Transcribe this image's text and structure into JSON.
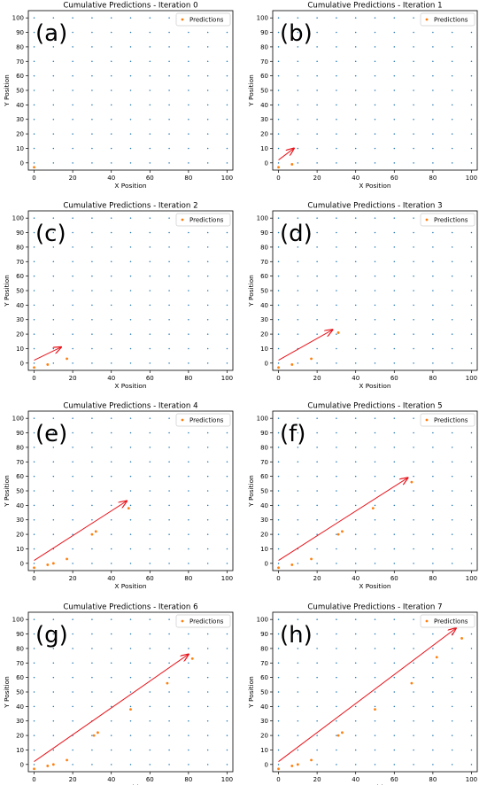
{
  "chart_data": [
    {
      "type": "scatter",
      "panel_label": "(a)",
      "title": "Cumulative Predictions - Iteration 0",
      "xlabel": "X Position",
      "ylabel": "Y Position",
      "xlim": [
        -3,
        103
      ],
      "ylim": [
        -5,
        105
      ],
      "xticks": [
        0,
        20,
        40,
        60,
        80,
        100
      ],
      "yticks": [
        0,
        10,
        20,
        30,
        40,
        50,
        60,
        70,
        80,
        90,
        100
      ],
      "grid": false,
      "legend": {
        "location": "top-right",
        "entries": [
          "Predictions"
        ]
      },
      "series": [
        {
          "name": "",
          "role": "grid points",
          "color": "#1f77b4",
          "x_values": [
            0,
            10,
            20,
            30,
            40,
            50,
            60,
            70,
            80,
            90,
            100
          ],
          "y_values": [
            0,
            10,
            20,
            30,
            40,
            50,
            60,
            70,
            80,
            90,
            100
          ]
        },
        {
          "name": "Predictions",
          "color": "#ff7f0e",
          "points": [
            [
              0,
              -3
            ]
          ]
        }
      ],
      "arrow": null
    },
    {
      "type": "scatter",
      "panel_label": "(b)",
      "title": "Cumulative Predictions - Iteration 1",
      "xlabel": "X Position",
      "ylabel": "Y Position",
      "xlim": [
        -3,
        103
      ],
      "ylim": [
        -5,
        105
      ],
      "xticks": [
        0,
        20,
        40,
        60,
        80,
        100
      ],
      "yticks": [
        0,
        10,
        20,
        30,
        40,
        50,
        60,
        70,
        80,
        90,
        100
      ],
      "grid": false,
      "legend": {
        "location": "top-right",
        "entries": [
          "Predictions"
        ]
      },
      "series": [
        {
          "name": "",
          "role": "grid points",
          "color": "#1f77b4",
          "x_values": [
            0,
            10,
            20,
            30,
            40,
            50,
            60,
            70,
            80,
            90,
            100
          ],
          "y_values": [
            0,
            10,
            20,
            30,
            40,
            50,
            60,
            70,
            80,
            90,
            100
          ]
        },
        {
          "name": "Predictions",
          "color": "#ff7f0e",
          "points": [
            [
              0,
              -3
            ],
            [
              7,
              -1
            ]
          ]
        }
      ],
      "arrow": {
        "color": "#e8141b",
        "from": [
          0,
          2
        ],
        "to": [
          8,
          10
        ]
      }
    },
    {
      "type": "scatter",
      "panel_label": "(c)",
      "title": "Cumulative Predictions - Iteration 2",
      "xlabel": "X Position",
      "ylabel": "Y Position",
      "xlim": [
        -3,
        103
      ],
      "ylim": [
        -5,
        105
      ],
      "xticks": [
        0,
        20,
        40,
        60,
        80,
        100
      ],
      "yticks": [
        0,
        10,
        20,
        30,
        40,
        50,
        60,
        70,
        80,
        90,
        100
      ],
      "grid": false,
      "legend": {
        "location": "top-right",
        "entries": [
          "Predictions"
        ]
      },
      "series": [
        {
          "name": "",
          "role": "grid points",
          "color": "#1f77b4",
          "x_values": [
            0,
            10,
            20,
            30,
            40,
            50,
            60,
            70,
            80,
            90,
            100
          ],
          "y_values": [
            0,
            10,
            20,
            30,
            40,
            50,
            60,
            70,
            80,
            90,
            100
          ]
        },
        {
          "name": "Predictions",
          "color": "#ff7f0e",
          "points": [
            [
              0,
              -3
            ],
            [
              7,
              -1
            ],
            [
              17,
              3
            ]
          ]
        }
      ],
      "arrow": {
        "color": "#e8141b",
        "from": [
          0,
          2
        ],
        "to": [
          14,
          11
        ]
      }
    },
    {
      "type": "scatter",
      "panel_label": "(d)",
      "title": "Cumulative Predictions - Iteration 3",
      "xlabel": "X Position",
      "ylabel": "Y Position",
      "xlim": [
        -3,
        103
      ],
      "ylim": [
        -5,
        105
      ],
      "xticks": [
        0,
        20,
        40,
        60,
        80,
        100
      ],
      "yticks": [
        0,
        10,
        20,
        30,
        40,
        50,
        60,
        70,
        80,
        90,
        100
      ],
      "grid": false,
      "legend": {
        "location": "top-right",
        "entries": [
          "Predictions"
        ]
      },
      "series": [
        {
          "name": "",
          "role": "grid points",
          "color": "#1f77b4",
          "x_values": [
            0,
            10,
            20,
            30,
            40,
            50,
            60,
            70,
            80,
            90,
            100
          ],
          "y_values": [
            0,
            10,
            20,
            30,
            40,
            50,
            60,
            70,
            80,
            90,
            100
          ]
        },
        {
          "name": "Predictions",
          "color": "#ff7f0e",
          "points": [
            [
              0,
              -3
            ],
            [
              7,
              -1
            ],
            [
              17,
              3
            ],
            [
              31,
              21
            ]
          ]
        }
      ],
      "arrow": {
        "color": "#e8141b",
        "from": [
          0,
          2
        ],
        "to": [
          28,
          23
        ]
      }
    },
    {
      "type": "scatter",
      "panel_label": "(e)",
      "title": "Cumulative Predictions - Iteration 4",
      "xlabel": "X Position",
      "ylabel": "Y Position",
      "xlim": [
        -3,
        103
      ],
      "ylim": [
        -5,
        105
      ],
      "xticks": [
        0,
        20,
        40,
        60,
        80,
        100
      ],
      "yticks": [
        0,
        10,
        20,
        30,
        40,
        50,
        60,
        70,
        80,
        90,
        100
      ],
      "grid": false,
      "legend": {
        "location": "top-right",
        "entries": [
          "Predictions"
        ]
      },
      "series": [
        {
          "name": "",
          "role": "grid points",
          "color": "#1f77b4",
          "x_values": [
            0,
            10,
            20,
            30,
            40,
            50,
            60,
            70,
            80,
            90,
            100
          ],
          "y_values": [
            0,
            10,
            20,
            30,
            40,
            50,
            60,
            70,
            80,
            90,
            100
          ]
        },
        {
          "name": "Predictions",
          "color": "#ff7f0e",
          "points": [
            [
              0,
              -3
            ],
            [
              7,
              -1
            ],
            [
              10,
              0
            ],
            [
              17,
              3
            ],
            [
              30,
              20
            ],
            [
              32,
              22
            ],
            [
              49,
              38
            ]
          ]
        }
      ],
      "arrow": {
        "color": "#e8141b",
        "from": [
          0,
          2
        ],
        "to": [
          48,
          43
        ]
      }
    },
    {
      "type": "scatter",
      "panel_label": "(f)",
      "title": "Cumulative Predictions - Iteration 5",
      "xlabel": "X Position",
      "ylabel": "Y Position",
      "xlim": [
        -3,
        103
      ],
      "ylim": [
        -5,
        105
      ],
      "xticks": [
        0,
        20,
        40,
        60,
        80,
        100
      ],
      "yticks": [
        0,
        10,
        20,
        30,
        40,
        50,
        60,
        70,
        80,
        90,
        100
      ],
      "grid": false,
      "legend": {
        "location": "top-right",
        "entries": [
          "Predictions"
        ]
      },
      "series": [
        {
          "name": "",
          "role": "grid points",
          "color": "#1f77b4",
          "x_values": [
            0,
            10,
            20,
            30,
            40,
            50,
            60,
            70,
            80,
            90,
            100
          ],
          "y_values": [
            0,
            10,
            20,
            30,
            40,
            50,
            60,
            70,
            80,
            90,
            100
          ]
        },
        {
          "name": "Predictions",
          "color": "#ff7f0e",
          "points": [
            [
              0,
              -3
            ],
            [
              7,
              -1
            ],
            [
              17,
              3
            ],
            [
              31,
              20
            ],
            [
              33,
              22
            ],
            [
              49,
              38
            ],
            [
              69,
              56
            ]
          ]
        }
      ],
      "arrow": {
        "color": "#e8141b",
        "from": [
          0,
          2
        ],
        "to": [
          67,
          59
        ]
      }
    },
    {
      "type": "scatter",
      "panel_label": "(g)",
      "title": "Cumulative Predictions - Iteration 6",
      "xlabel": "X Position",
      "ylabel": "Y Position",
      "xlim": [
        -3,
        103
      ],
      "ylim": [
        -5,
        105
      ],
      "xticks": [
        0,
        20,
        40,
        60,
        80,
        100
      ],
      "yticks": [
        0,
        10,
        20,
        30,
        40,
        50,
        60,
        70,
        80,
        90,
        100
      ],
      "grid": false,
      "legend": {
        "location": "top-right",
        "entries": [
          "Predictions"
        ]
      },
      "series": [
        {
          "name": "",
          "role": "grid points",
          "color": "#1f77b4",
          "x_values": [
            0,
            10,
            20,
            30,
            40,
            50,
            60,
            70,
            80,
            90,
            100
          ],
          "y_values": [
            0,
            10,
            20,
            30,
            40,
            50,
            60,
            70,
            80,
            90,
            100
          ]
        },
        {
          "name": "Predictions",
          "color": "#ff7f0e",
          "points": [
            [
              0,
              -3
            ],
            [
              7,
              -1
            ],
            [
              10,
              0
            ],
            [
              17,
              3
            ],
            [
              31,
              20
            ],
            [
              33,
              22
            ],
            [
              50,
              38
            ],
            [
              69,
              56
            ],
            [
              82,
              73
            ]
          ]
        }
      ],
      "arrow": {
        "color": "#e8141b",
        "from": [
          0,
          2
        ],
        "to": [
          80,
          76
        ]
      }
    },
    {
      "type": "scatter",
      "panel_label": "(h)",
      "title": "Cumulative Predictions - Iteration 7",
      "xlabel": "X Position",
      "ylabel": "Y Position",
      "xlim": [
        -3,
        103
      ],
      "ylim": [
        -5,
        105
      ],
      "xticks": [
        0,
        20,
        40,
        60,
        80,
        100
      ],
      "yticks": [
        0,
        10,
        20,
        30,
        40,
        50,
        60,
        70,
        80,
        90,
        100
      ],
      "grid": false,
      "legend": {
        "location": "top-right",
        "entries": [
          "Predictions"
        ]
      },
      "series": [
        {
          "name": "",
          "role": "grid points",
          "color": "#1f77b4",
          "x_values": [
            0,
            10,
            20,
            30,
            40,
            50,
            60,
            70,
            80,
            90,
            100
          ],
          "y_values": [
            0,
            10,
            20,
            30,
            40,
            50,
            60,
            70,
            80,
            90,
            100
          ]
        },
        {
          "name": "Predictions",
          "color": "#ff7f0e",
          "points": [
            [
              0,
              -3
            ],
            [
              7,
              -1
            ],
            [
              10,
              0
            ],
            [
              17,
              3
            ],
            [
              31,
              20
            ],
            [
              33,
              22
            ],
            [
              50,
              38
            ],
            [
              69,
              56
            ],
            [
              82,
              74
            ],
            [
              95,
              87
            ]
          ]
        }
      ],
      "arrow": {
        "color": "#e8141b",
        "from": [
          0,
          2
        ],
        "to": [
          92,
          94
        ]
      }
    }
  ]
}
